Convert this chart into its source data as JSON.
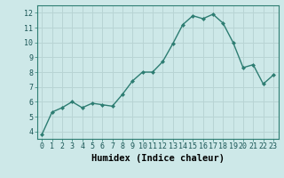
{
  "x": [
    0,
    1,
    2,
    3,
    4,
    5,
    6,
    7,
    8,
    9,
    10,
    11,
    12,
    13,
    14,
    15,
    16,
    17,
    18,
    19,
    20,
    21,
    22,
    23
  ],
  "y": [
    3.8,
    5.3,
    5.6,
    6.0,
    5.6,
    5.9,
    5.8,
    5.7,
    6.5,
    7.4,
    8.0,
    8.0,
    8.7,
    9.9,
    11.2,
    11.8,
    11.6,
    11.9,
    11.3,
    10.0,
    8.3,
    8.5,
    7.2,
    7.8
  ],
  "line_color": "#2d7d72",
  "marker": "D",
  "marker_size": 2.0,
  "bg_color": "#cde8e8",
  "grid_color": "#b8d4d4",
  "xlabel": "Humidex (Indice chaleur)",
  "ylim": [
    3.5,
    12.5
  ],
  "xlim": [
    -0.5,
    23.5
  ],
  "yticks": [
    4,
    5,
    6,
    7,
    8,
    9,
    10,
    11,
    12
  ],
  "xticks": [
    0,
    1,
    2,
    3,
    4,
    5,
    6,
    7,
    8,
    9,
    10,
    11,
    12,
    13,
    14,
    15,
    16,
    17,
    18,
    19,
    20,
    21,
    22,
    23
  ],
  "tick_label_size": 6.0,
  "xlabel_size": 7.5,
  "axis_bg": "#cde8e8",
  "fig_bg": "#cde8e8",
  "spine_color": "#2d7d72"
}
